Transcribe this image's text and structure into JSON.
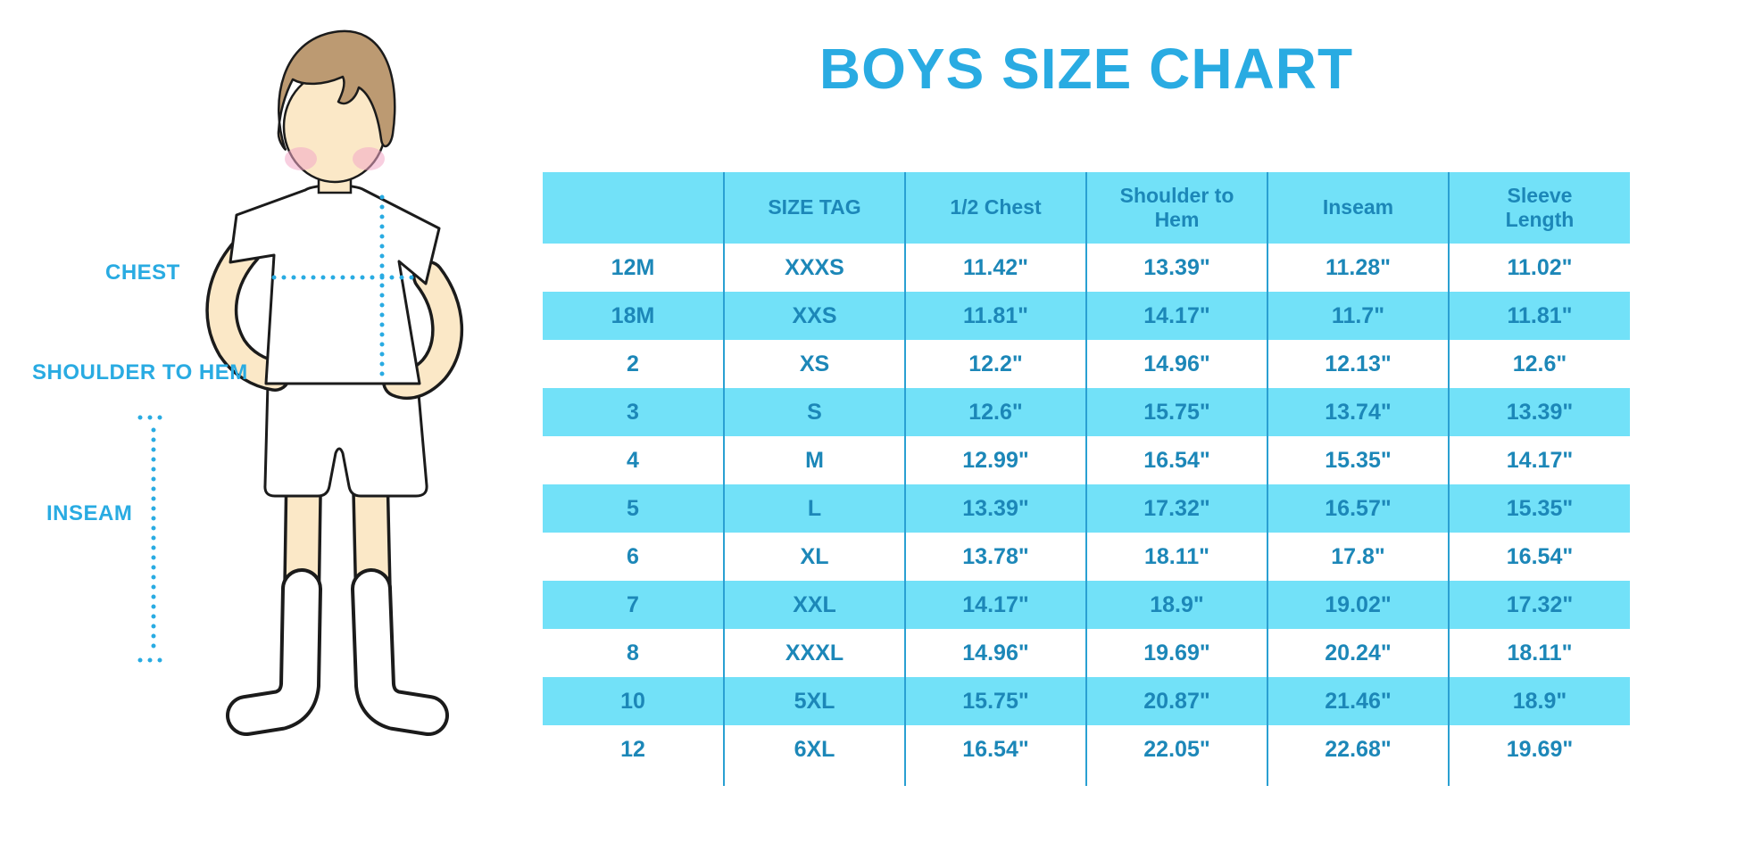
{
  "title": "BOYS SIZE CHART",
  "diagram": {
    "chest_label": "CHEST",
    "shoulder_to_hem_label": "SHOULDER TO HEM",
    "inseam_label": "INSEAM"
  },
  "colors": {
    "accent_blue": "#29ABE2",
    "table_text_blue": "#1C87B8",
    "row_band_cyan": "#72E1F8",
    "grid_line_blue": "#2AA0D2",
    "hair_brown": "#BC9A72",
    "skin": "#FBE8C7",
    "cheek_pink": "#F2A8C6",
    "outline_black": "#1b1b1b"
  },
  "chart_data": {
    "type": "table",
    "title": "BOYS SIZE CHART",
    "columns": [
      "",
      "SIZE TAG",
      "1/2 Chest",
      "Shoulder to Hem",
      "Inseam",
      "Sleeve Length"
    ],
    "rows": [
      [
        "12M",
        "XXXS",
        "11.42\"",
        "13.39\"",
        "11.28\"",
        "11.02\""
      ],
      [
        "18M",
        "XXS",
        "11.81\"",
        "14.17\"",
        "11.7\"",
        "11.81\""
      ],
      [
        "2",
        "XS",
        "12.2\"",
        "14.96\"",
        "12.13\"",
        "12.6\""
      ],
      [
        "3",
        "S",
        "12.6\"",
        "15.75\"",
        "13.74\"",
        "13.39\""
      ],
      [
        "4",
        "M",
        "12.99\"",
        "16.54\"",
        "15.35\"",
        "14.17\""
      ],
      [
        "5",
        "L",
        "13.39\"",
        "17.32\"",
        "16.57\"",
        "15.35\""
      ],
      [
        "6",
        "XL",
        "13.78\"",
        "18.11\"",
        "17.8\"",
        "16.54\""
      ],
      [
        "7",
        "XXL",
        "14.17\"",
        "18.9\"",
        "19.02\"",
        "17.32\""
      ],
      [
        "8",
        "XXXL",
        "14.96\"",
        "19.69\"",
        "20.24\"",
        "18.11\""
      ],
      [
        "10",
        "5XL",
        "15.75\"",
        "20.87\"",
        "21.46\"",
        "18.9\""
      ],
      [
        "12",
        "6XL",
        "16.54\"",
        "22.05\"",
        "22.68\"",
        "19.69\""
      ]
    ]
  }
}
